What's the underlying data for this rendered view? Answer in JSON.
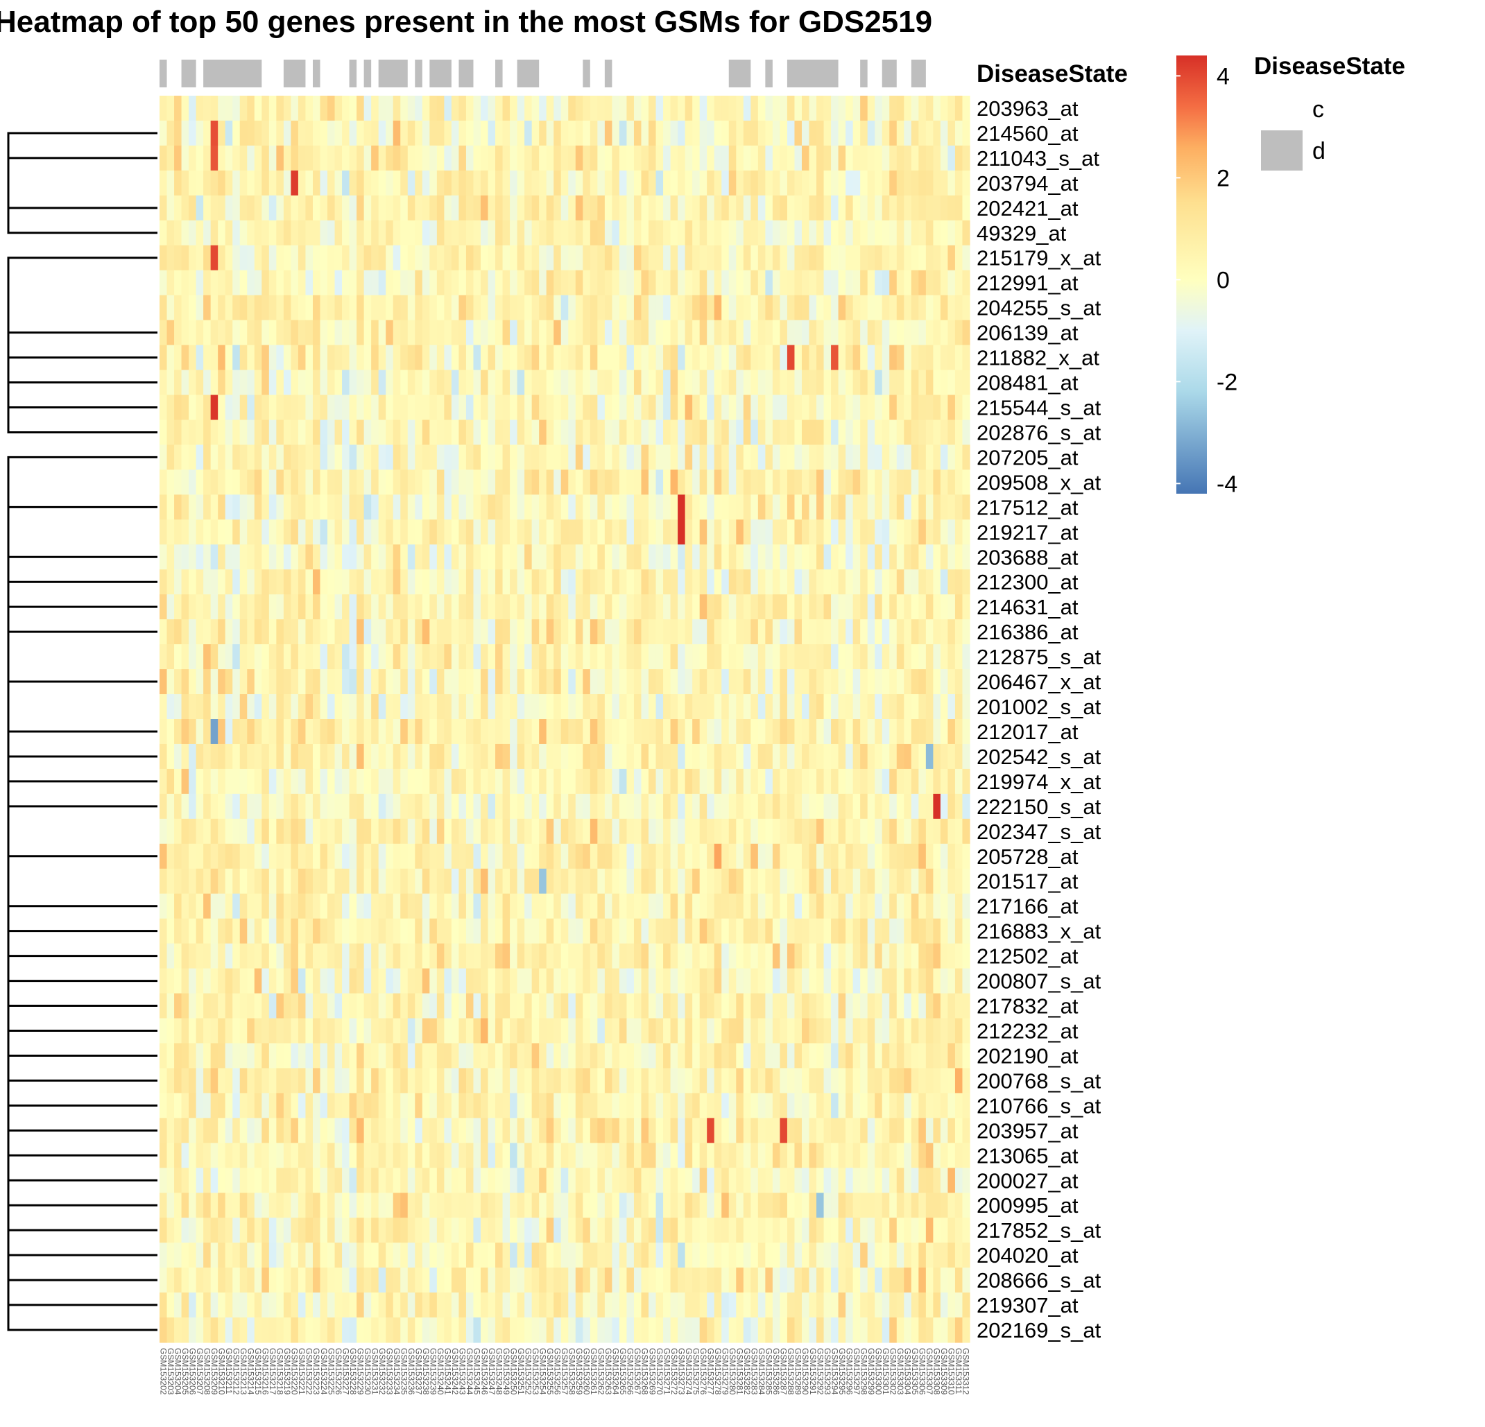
{
  "chart_data": {
    "type": "heatmap",
    "title": "Heatmap of top 50 genes present in the most GSMs for GDS2519",
    "rows": [
      "203963_at",
      "214560_at",
      "211043_s_at",
      "203794_at",
      "202421_at",
      "49329_at",
      "215179_x_at",
      "212991_at",
      "204255_s_at",
      "206139_at",
      "211882_x_at",
      "208481_at",
      "215544_s_at",
      "202876_s_at",
      "207205_at",
      "209508_x_at",
      "217512_at",
      "219217_at",
      "203688_at",
      "212300_at",
      "214631_at",
      "216386_at",
      "212875_s_at",
      "206467_x_at",
      "201002_s_at",
      "212017_at",
      "202542_s_at",
      "219974_x_at",
      "222150_s_at",
      "202347_s_at",
      "205728_at",
      "201517_at",
      "217166_at",
      "216883_x_at",
      "212502_at",
      "200807_s_at",
      "217832_at",
      "212232_at",
      "202190_at",
      "200768_s_at",
      "210766_s_at",
      "203957_at",
      "213065_at",
      "200027_at",
      "200995_at",
      "217852_s_at",
      "204020_at",
      "208666_s_at",
      "219307_at",
      "202169_s_at"
    ],
    "columns": [
      "GSM153202",
      "GSM153203",
      "GSM153204",
      "GSM153205",
      "GSM153206",
      "GSM153207",
      "GSM153208",
      "GSM153209",
      "GSM153210",
      "GSM153211",
      "GSM153212",
      "GSM153213",
      "GSM153214",
      "GSM153215",
      "GSM153216",
      "GSM153217",
      "GSM153218",
      "GSM153219",
      "GSM153220",
      "GSM153221",
      "GSM153222",
      "GSM153223",
      "GSM153224",
      "GSM153225",
      "GSM153226",
      "GSM153227",
      "GSM153228",
      "GSM153229",
      "GSM153230",
      "GSM153231",
      "GSM153232",
      "GSM153233",
      "GSM153234",
      "GSM153235",
      "GSM153236",
      "GSM153237",
      "GSM153238",
      "GSM153239",
      "GSM153240",
      "GSM153241",
      "GSM153242",
      "GSM153243",
      "GSM153244",
      "GSM153245",
      "GSM153246",
      "GSM153247",
      "GSM153248",
      "GSM153249",
      "GSM153250",
      "GSM153251",
      "GSM153252",
      "GSM153253",
      "GSM153254",
      "GSM153255",
      "GSM153256",
      "GSM153257",
      "GSM153258",
      "GSM153259",
      "GSM153260",
      "GSM153261",
      "GSM153262",
      "GSM153263",
      "GSM153264",
      "GSM153265",
      "GSM153266",
      "GSM153267",
      "GSM153268",
      "GSM153269",
      "GSM153270",
      "GSM153271",
      "GSM153272",
      "GSM153273",
      "GSM153274",
      "GSM153275",
      "GSM153276",
      "GSM153277",
      "GSM153278",
      "GSM153279",
      "GSM153280",
      "GSM153281",
      "GSM153282",
      "GSM153283",
      "GSM153284",
      "GSM153285",
      "GSM153286",
      "GSM153287",
      "GSM153288",
      "GSM153289",
      "GSM153290",
      "GSM153291",
      "GSM153292",
      "GSM153293",
      "GSM153294",
      "GSM153295",
      "GSM153296",
      "GSM153297",
      "GSM153298",
      "GSM153299",
      "GSM153300",
      "GSM153301",
      "GSM153302",
      "GSM153303",
      "GSM153304",
      "GSM153305",
      "GSM153306",
      "GSM153307",
      "GSM153308",
      "GSM153309",
      "GSM153310",
      "GSM153311",
      "GSM153312"
    ],
    "annotation": {
      "name": "DiseaseState",
      "levels": [
        "c",
        "d"
      ],
      "colors": {
        "c": "#FFFFFF",
        "d": "#BEBEBE"
      },
      "d_ranges": [
        [
          0,
          0
        ],
        [
          3,
          4
        ],
        [
          6,
          13
        ],
        [
          17,
          19
        ],
        [
          21,
          21
        ],
        [
          26,
          26
        ],
        [
          28,
          28
        ],
        [
          30,
          33
        ],
        [
          35,
          35
        ],
        [
          37,
          39
        ],
        [
          41,
          42
        ],
        [
          46,
          46
        ],
        [
          49,
          51
        ],
        [
          58,
          58
        ],
        [
          61,
          61
        ],
        [
          78,
          80
        ],
        [
          83,
          83
        ],
        [
          86,
          92
        ],
        [
          96,
          96
        ],
        [
          99,
          100
        ],
        [
          103,
          104
        ]
      ]
    },
    "color_scale": {
      "min": -4.2,
      "max": 4.4,
      "stops": [
        {
          "v": -4.2,
          "c": "#4575B4"
        },
        {
          "v": -2.2,
          "c": "#ABD9E9"
        },
        {
          "v": -1.0,
          "c": "#E0F3F8"
        },
        {
          "v": 0.0,
          "c": "#FFFFBF"
        },
        {
          "v": 1.5,
          "c": "#FEE090"
        },
        {
          "v": 2.6,
          "c": "#FDAE61"
        },
        {
          "v": 3.4,
          "c": "#F46D43"
        },
        {
          "v": 4.4,
          "c": "#D73027"
        }
      ],
      "ticks": [
        4,
        2,
        0,
        -2,
        -4
      ]
    },
    "highlights": [
      {
        "row": "214560_at",
        "column": "GSM153209",
        "value": 3.9
      },
      {
        "row": "211043_s_at",
        "column": "GSM153209",
        "value": 3.8
      },
      {
        "row": "203794_at",
        "column": "GSM153220",
        "value": 4.2
      },
      {
        "row": "215179_x_at",
        "column": "GSM153209",
        "value": 4.0
      },
      {
        "row": "215544_s_at",
        "column": "GSM153209",
        "value": 4.3
      },
      {
        "row": "211882_x_at",
        "column": "GSM153288",
        "value": 4.0
      },
      {
        "row": "211882_x_at",
        "column": "GSM153294",
        "value": 3.8
      },
      {
        "row": "217512_at",
        "column": "GSM153273",
        "value": 4.4
      },
      {
        "row": "219217_at",
        "column": "GSM153273",
        "value": 4.4
      },
      {
        "row": "222150_s_at",
        "column": "GSM153308",
        "value": 4.4
      },
      {
        "row": "203957_at",
        "column": "GSM153277",
        "value": 4.0
      },
      {
        "row": "203957_at",
        "column": "GSM153287",
        "value": 4.0
      },
      {
        "row": "212017_at",
        "column": "GSM153209",
        "value": -3.3
      },
      {
        "row": "202542_s_at",
        "column": "GSM153307",
        "value": -2.8
      },
      {
        "row": "201517_at",
        "column": "GSM153254",
        "value": -2.6
      },
      {
        "row": "200995_at",
        "column": "GSM153292",
        "value": -2.6
      }
    ],
    "row_dendrogram": [
      [
        1,
        2
      ],
      [
        0,
        -1
      ],
      [
        6,
        7
      ],
      [
        4,
        5
      ],
      [
        3,
        -4
      ],
      [
        -3,
        -5
      ],
      [
        -2,
        -6
      ],
      [
        10,
        11
      ],
      [
        9,
        -8
      ],
      [
        8,
        -9
      ],
      [
        12,
        13
      ],
      [
        -10,
        -11
      ],
      [
        14,
        15
      ],
      [
        -12,
        -13
      ],
      [
        -7,
        -14
      ],
      [
        17,
        18
      ],
      [
        16,
        -16
      ],
      [
        20,
        21
      ],
      [
        19,
        -18
      ],
      [
        22,
        23
      ],
      [
        -19,
        -20
      ],
      [
        -17,
        -21
      ],
      [
        25,
        26
      ],
      [
        24,
        -23
      ],
      [
        28,
        29
      ],
      [
        27,
        -25
      ],
      [
        30,
        31
      ],
      [
        -26,
        -27
      ],
      [
        -24,
        -28
      ],
      [
        33,
        34
      ],
      [
        32,
        -30
      ],
      [
        36,
        37
      ],
      [
        35,
        -32
      ],
      [
        38,
        39
      ],
      [
        -33,
        -34
      ],
      [
        -31,
        -35
      ],
      [
        40,
        41
      ],
      [
        42,
        43
      ],
      [
        -37,
        -38
      ],
      [
        44,
        45
      ],
      [
        -39,
        -40
      ],
      [
        -41,
        -42
      ],
      [
        -36,
        -43
      ],
      [
        46,
        47
      ],
      [
        48,
        49
      ],
      [
        -45,
        -46
      ],
      [
        -44,
        -47
      ],
      [
        -29,
        -48
      ],
      [
        -22,
        -49
      ],
      [
        -15,
        -50
      ]
    ]
  }
}
